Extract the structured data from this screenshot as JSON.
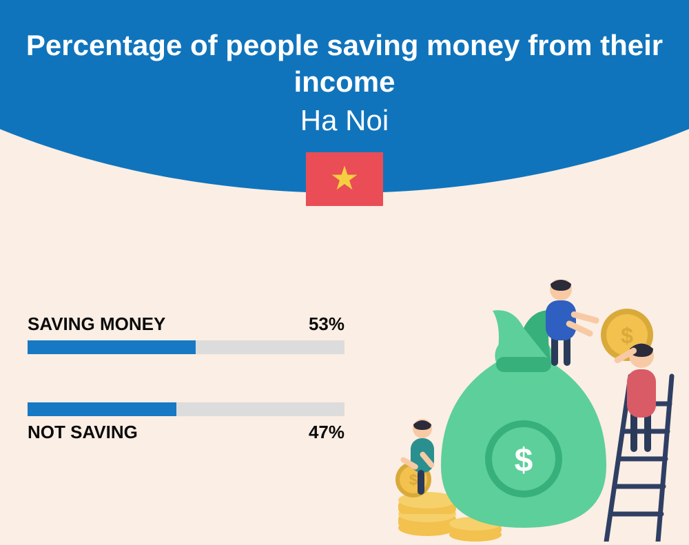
{
  "header": {
    "title": "Percentage of people saving money from their income",
    "subtitle": "Ha Noi",
    "bg_color": "#1074bc",
    "text_color": "#ffffff",
    "title_fontsize": 42,
    "title_fontweight": 800,
    "subtitle_fontsize": 42,
    "subtitle_fontweight": 400,
    "flag": {
      "bg": "#ea4d56",
      "star_color": "#f4cf42"
    }
  },
  "page": {
    "background_color": "#fbeee4"
  },
  "bars": {
    "track_color": "#dcdcdc",
    "fill_color": "#1779c4",
    "label_color": "#0b0b0b",
    "label_fontsize": 26,
    "label_fontweight": 800,
    "saving": {
      "label": "SAVING MONEY",
      "valueText": "53%",
      "value": 53
    },
    "not_saving": {
      "label": "NOT SAVING",
      "valueText": "47%",
      "value": 47
    }
  },
  "illustration": {
    "bag_color": "#5dcf9b",
    "bag_dark": "#38b07b",
    "coin_color": "#f2c14e",
    "coin_dark": "#d9a93a",
    "skin": "#f7caa5",
    "shirt_blue": "#2f5fc0",
    "shirt_teal": "#2a8f8f",
    "shirt_red": "#d95b66",
    "pants_dark": "#2a3b5a",
    "hair_dark": "#2b2b3a",
    "ladder": "#2f3f63"
  }
}
